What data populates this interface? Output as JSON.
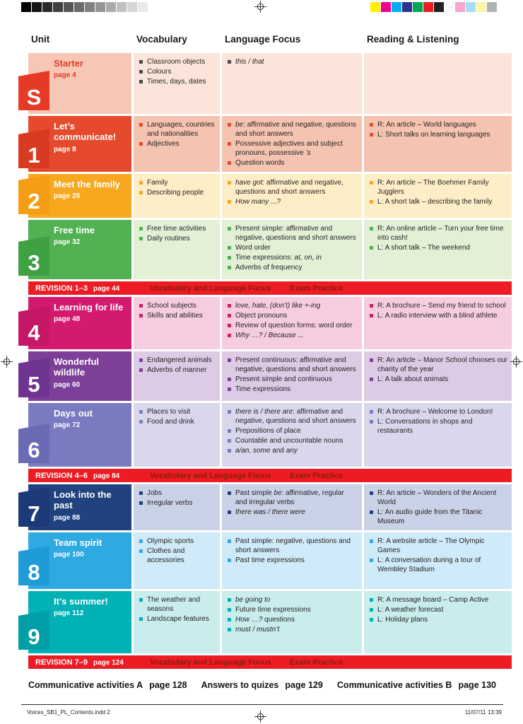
{
  "print_marks": {
    "grayscale_strip": [
      "#000000",
      "#151515",
      "#2b2b2b",
      "#404040",
      "#565656",
      "#6b6b6b",
      "#808080",
      "#959595",
      "#ababab",
      "#c0c0c0",
      "#d5d5d5",
      "#eaeaea",
      "#ffffff"
    ],
    "color_strip": [
      "#fff200",
      "#ec008c",
      "#00aeef",
      "#2e3192",
      "#00a651",
      "#ed1c24",
      "#231f20",
      "#f8f8f8",
      "#f7a6cc",
      "#a6dff7",
      "#fdf6a6",
      "#b0b2b4"
    ]
  },
  "header": {
    "columns": [
      "Unit",
      "Vocabulary",
      "Language Focus",
      "Reading & Listening"
    ]
  },
  "rows": [
    {
      "type": "unit",
      "number": "S",
      "title": "Starter",
      "page": "page 4",
      "min_height": 86,
      "colors": {
        "tab": "#e63a26",
        "cell": "#f6c7b5",
        "row": "#fbe5da",
        "title": "#e63a26",
        "bullet": "#4a4a4c"
      },
      "vocabulary": [
        "Classroom objects",
        "Colours",
        "Times, days, dates"
      ],
      "language_focus": [
        "<i>this / that</i>"
      ],
      "reading_listening": []
    },
    {
      "type": "unit",
      "number": "1",
      "title": "Let’s communicate!",
      "page": "page 8",
      "min_height": 70,
      "colors": {
        "tab": "#d93b22",
        "cell": "#e64a2d",
        "row": "#f4c4b0",
        "title": "#ffffff",
        "bullet": "#e64a2d"
      },
      "vocabulary": [
        "Languages, countries and nationalities",
        "Adjectives"
      ],
      "language_focus": [
        "<i>be</i>: affirmative and negative, questions and short answers",
        "Possessive adjectives and subject pronouns, possessive <i>’s</i>",
        "Question words"
      ],
      "reading_listening": [
        "R: An article – World languages",
        "L: Short talks on learning languages"
      ]
    },
    {
      "type": "unit",
      "number": "2",
      "title": "Meet the family",
      "page": "page 20",
      "min_height": 62,
      "colors": {
        "tab": "#f59e15",
        "cell": "#f8a81f",
        "row": "#fdeec8",
        "title": "#ffffff",
        "bullet": "#f5a81f"
      },
      "vocabulary": [
        "Family",
        "Describing people"
      ],
      "language_focus": [
        "<i>have got</i>: affirmative and negative, questions and short answers",
        "<i>How many ...?</i>"
      ],
      "reading_listening": [
        "R: An article – The Boehmer Family Jugglers",
        "L: A short talk – describing the family"
      ]
    },
    {
      "type": "unit",
      "number": "3",
      "title": "Free time",
      "page": "page 32",
      "min_height": 84,
      "colors": {
        "tab": "#3fa044",
        "cell": "#52b153",
        "row": "#e2f0d6",
        "title": "#ffffff",
        "bullet": "#52b153"
      },
      "vocabulary": [
        "Free time activities",
        "Daily routines"
      ],
      "language_focus": [
        "Present simple: affirmative and negative, questions and short answers",
        "Word order",
        "Time expressions: <i>at, on, in</i>",
        "Adverbs of frequency"
      ],
      "reading_listening": [
        "R: An online article – Turn your free time into cash!",
        "L: A short talk – The weekend"
      ]
    },
    {
      "type": "revision",
      "label": "REVISION 1–3",
      "page": "page 44",
      "mid": "Vocabulary and Language Focus",
      "right": "Exam Practice"
    },
    {
      "type": "unit",
      "number": "4",
      "title": "Learning for life",
      "page": "page 48",
      "min_height": 74,
      "colors": {
        "tab": "#c41766",
        "cell": "#d41a6e",
        "row": "#f5cddf",
        "title": "#ffffff",
        "bullet": "#d41a6e"
      },
      "vocabulary": [
        "School subjects",
        "Skills and abilities"
      ],
      "language_focus": [
        "<i>love, hate, (don’t) like +-ing</i>",
        "Object pronouns",
        "Review of question forms: word order",
        "<i>Why …? / Because ...</i>"
      ],
      "reading_listening": [
        "R: A brochure – Send my friend to school",
        "L: A radio interview with a blind athlete"
      ]
    },
    {
      "type": "unit",
      "number": "5",
      "title": "Wonderful wildlife",
      "page": "page 60",
      "min_height": 70,
      "colors": {
        "tab": "#6f3391",
        "cell": "#7d3f98",
        "row": "#ddcbe6",
        "title": "#ffffff",
        "bullet": "#7d3f98"
      },
      "vocabulary": [
        "Endangered animals",
        "Adverbs of manner"
      ],
      "language_focus": [
        "Present continuous: affirmative and negative, questions and short answers",
        "Present simple and continuous",
        "Time expressions"
      ],
      "reading_listening": [
        "R: An article – Manor School chooses our charity of the year",
        "L: A talk about animals"
      ]
    },
    {
      "type": "unit",
      "number": "6",
      "title": "Days out",
      "page": "page 72",
      "min_height": 90,
      "colors": {
        "tab": "#6a6ab5",
        "cell": "#7a7ac1",
        "row": "#d9d7ec",
        "title": "#ffffff",
        "bullet": "#7a7ac1"
      },
      "vocabulary": [
        "Places to visit",
        "Food and drink"
      ],
      "language_focus": [
        "<i>there is / there are</i>: affirmative and negative, questions and short answers",
        "Prepositions of place",
        "Countable and uncountable nouns",
        "<i>a/an, some</i> and <i>any</i>"
      ],
      "reading_listening": [
        "R: A brochure – Welcome to London!",
        "L: Conversations in shops and restaurants"
      ]
    },
    {
      "type": "revision",
      "label": "REVISION 4–6",
      "page": "page 84",
      "mid": "Vocabulary and Language Focus",
      "right": "Exam Practice"
    },
    {
      "type": "unit",
      "number": "7",
      "title": "Look into the past",
      "page": "page 88",
      "min_height": 64,
      "colors": {
        "tab": "#1c3a78",
        "cell": "#21427f",
        "row": "#cad2e7",
        "title": "#ffffff",
        "bullet": "#21427f"
      },
      "vocabulary": [
        "Jobs",
        "Irregular verbs"
      ],
      "language_focus": [
        "Past simple <i>be</i>: affirmative, regular and irregular verbs",
        "<i>there was / there were</i>"
      ],
      "reading_listening": [
        "R: An article – Wonders of the Ancient World",
        "L: An audio guide from the Titanic Museum"
      ]
    },
    {
      "type": "unit",
      "number": "8",
      "title": "Team spirit",
      "page": "page 100",
      "min_height": 80,
      "colors": {
        "tab": "#1f9cd8",
        "cell": "#2fa9e1",
        "row": "#cfeaf8",
        "title": "#ffffff",
        "bullet": "#2fa9e1"
      },
      "vocabulary": [
        "Olympic sports",
        "Clothes and accessories"
      ],
      "language_focus": [
        "Past simple: negative, questions and short answers",
        "Past time expressions"
      ],
      "reading_listening": [
        "R: A website article – The Olympic Games",
        "L: A conversation during a tour of Wembley Stadium"
      ]
    },
    {
      "type": "unit",
      "number": "9",
      "title": "It’s summer!",
      "page": "page 112",
      "min_height": 88,
      "colors": {
        "tab": "#009fa8",
        "cell": "#00b1b5",
        "row": "#c9eced",
        "title": "#ffffff",
        "bullet": "#00b1b5"
      },
      "vocabulary": [
        "The weather and seasons",
        "Landscape features"
      ],
      "language_focus": [
        "<i>be going to</i>",
        "Future time expressions",
        "<i>How …?</i> questions",
        "<i>must / mustn’t</i>"
      ],
      "reading_listening": [
        "R: A message board – Camp Active",
        "L: A weather forecast",
        "L: Holiday plans"
      ]
    },
    {
      "type": "revision",
      "label": "REVISION 7–9",
      "page": "page 124",
      "mid": "Vocabulary and Language Focus",
      "right": "Exam Practice"
    }
  ],
  "bottom_links": [
    {
      "label": "Communicative activities A",
      "page": "page 128"
    },
    {
      "label": "Answers to quizes",
      "page": "page 129"
    },
    {
      "label": "Communicative activities B",
      "page": "page 130"
    }
  ],
  "footer": {
    "left": "Voices_SB1_PL_Contents.indd   2",
    "right": "11/07/11   13:39"
  }
}
